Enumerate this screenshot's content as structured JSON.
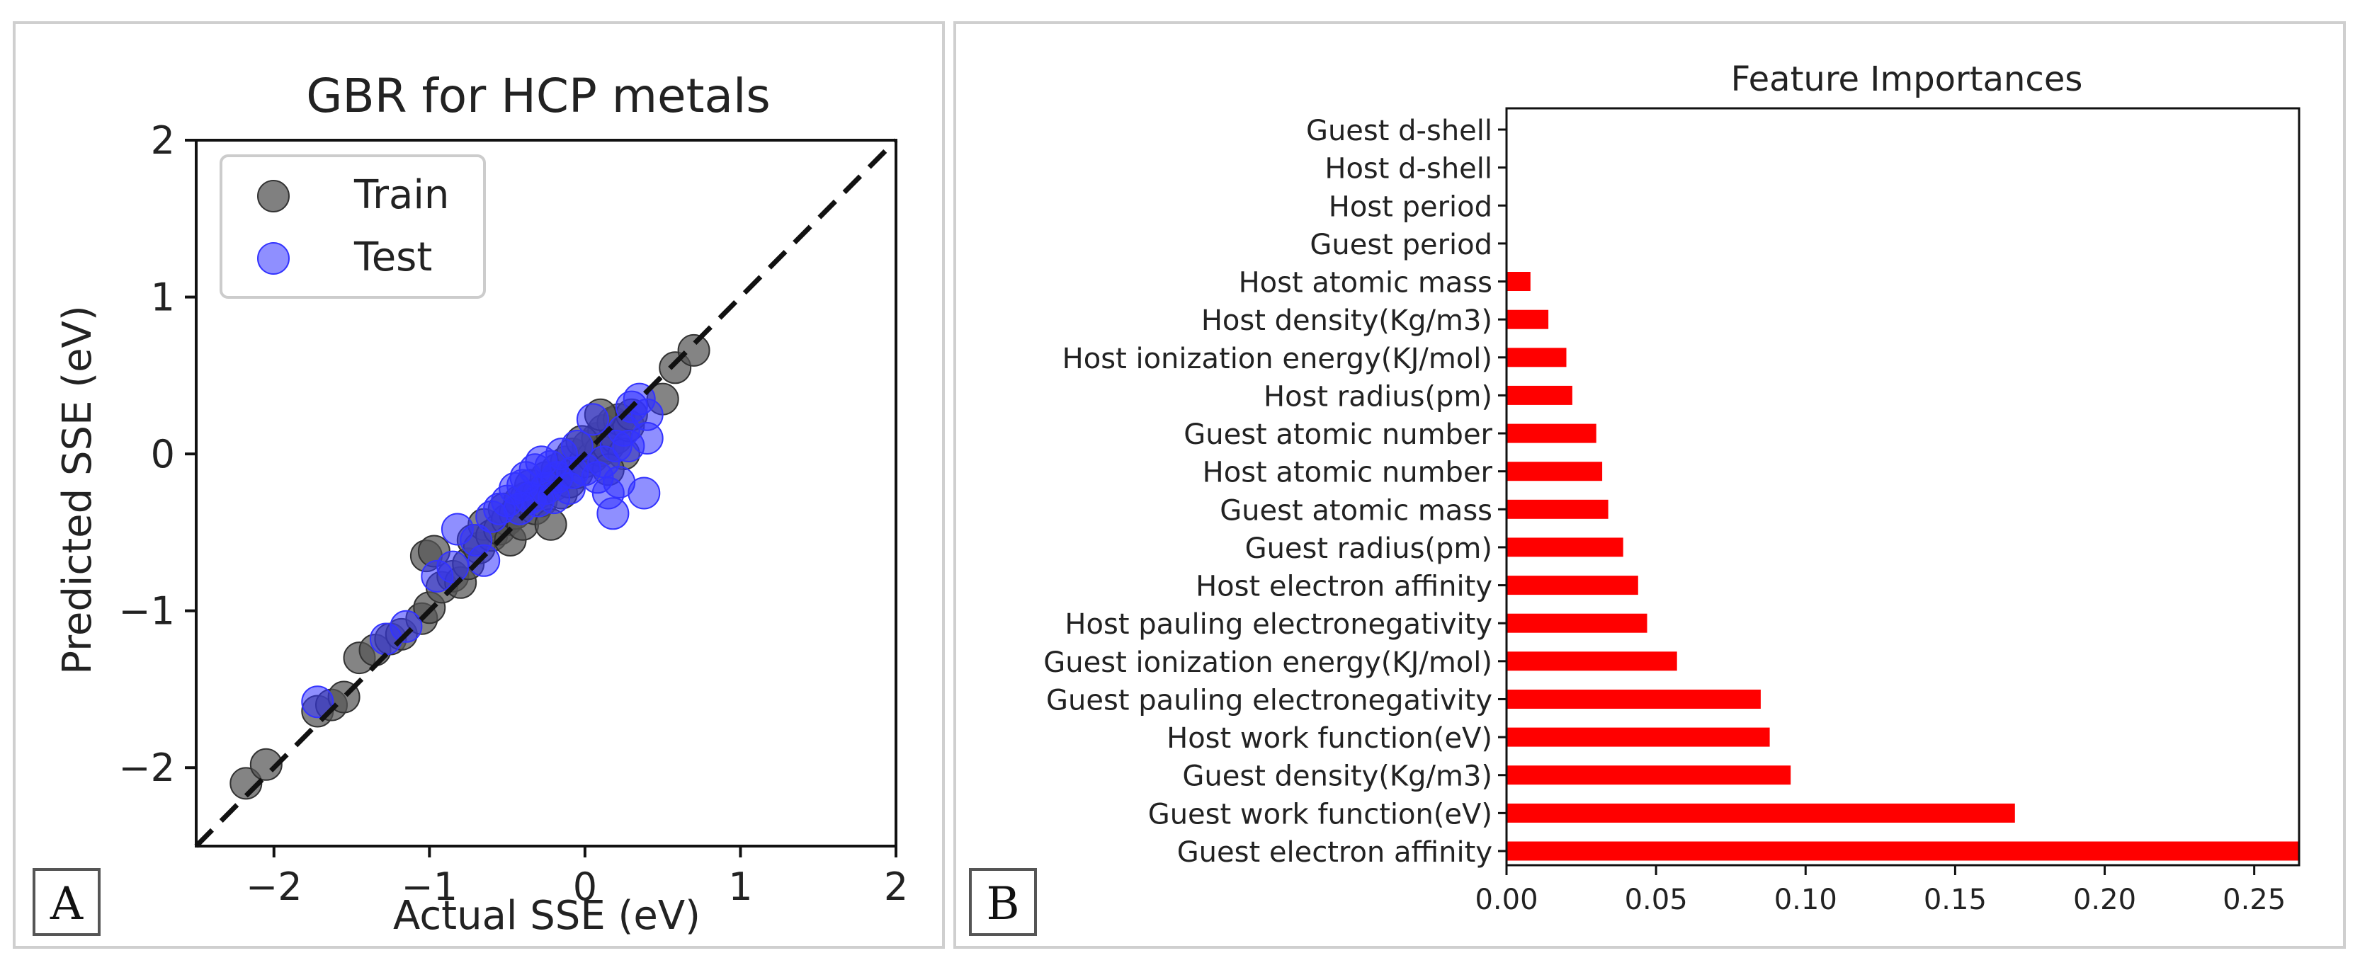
{
  "figure": {
    "panel_a_letter": "A",
    "panel_b_letter": "B"
  },
  "chart_data": [
    {
      "type": "scatter",
      "title": "GBR for HCP metals",
      "xlabel": "Actual SSE (eV)",
      "ylabel": "Predicted SSE (eV)",
      "xlim": [
        -2.5,
        2
      ],
      "ylim": [
        -2.5,
        2
      ],
      "xticks": [
        -2,
        -1,
        0,
        1,
        2
      ],
      "yticks": [
        -2,
        -1,
        0,
        1,
        2
      ],
      "xtick_labels": [
        "−2",
        "−1",
        "0",
        "1",
        "2"
      ],
      "ytick_labels": [
        "−2",
        "−1",
        "0",
        "1",
        "2"
      ],
      "legend": {
        "position": "top-left",
        "entries": [
          "Train",
          "Test"
        ]
      },
      "reference_line": {
        "style": "dashed",
        "from": [
          -2.5,
          -2.5
        ],
        "to": [
          2,
          2
        ]
      },
      "series": [
        {
          "name": "Train",
          "color": "#555555",
          "points": [
            [
              -2.18,
              -2.1
            ],
            [
              -2.05,
              -1.98
            ],
            [
              -1.72,
              -1.64
            ],
            [
              -1.63,
              -1.6
            ],
            [
              -1.55,
              -1.55
            ],
            [
              -1.45,
              -1.3
            ],
            [
              -1.35,
              -1.25
            ],
            [
              -1.25,
              -1.18
            ],
            [
              -1.18,
              -1.15
            ],
            [
              -1.05,
              -1.05
            ],
            [
              -1.0,
              -0.98
            ],
            [
              -1.02,
              -0.65
            ],
            [
              -0.97,
              -0.62
            ],
            [
              -0.92,
              -0.85
            ],
            [
              -0.85,
              -0.78
            ],
            [
              -0.8,
              -0.82
            ],
            [
              -0.75,
              -0.7
            ],
            [
              -0.72,
              -0.55
            ],
            [
              -0.68,
              -0.6
            ],
            [
              -0.65,
              -0.45
            ],
            [
              -0.6,
              -0.52
            ],
            [
              -0.55,
              -0.48
            ],
            [
              -0.52,
              -0.35
            ],
            [
              -0.5,
              -0.42
            ],
            [
              -0.48,
              -0.55
            ],
            [
              -0.45,
              -0.38
            ],
            [
              -0.42,
              -0.3
            ],
            [
              -0.4,
              -0.45
            ],
            [
              -0.38,
              -0.28
            ],
            [
              -0.35,
              -0.2
            ],
            [
              -0.32,
              -0.35
            ],
            [
              -0.3,
              -0.25
            ],
            [
              -0.28,
              -0.3
            ],
            [
              -0.25,
              -0.15
            ],
            [
              -0.22,
              -0.45
            ],
            [
              -0.2,
              -0.2
            ],
            [
              -0.18,
              -0.1
            ],
            [
              -0.15,
              -0.25
            ],
            [
              -0.12,
              -0.05
            ],
            [
              -0.1,
              -0.18
            ],
            [
              -0.08,
              0.0
            ],
            [
              -0.05,
              -0.12
            ],
            [
              0.0,
              -0.05
            ],
            [
              0.02,
              0.05
            ],
            [
              0.05,
              -0.02
            ],
            [
              0.08,
              0.1
            ],
            [
              0.1,
              0.02
            ],
            [
              0.12,
              0.15
            ],
            [
              0.15,
              0.05
            ],
            [
              0.18,
              0.2
            ],
            [
              0.2,
              0.1
            ],
            [
              0.22,
              0.22
            ],
            [
              0.25,
              0.0
            ],
            [
              0.28,
              0.18
            ],
            [
              0.3,
              0.25
            ],
            [
              0.1,
              0.25
            ],
            [
              0.15,
              -0.1
            ],
            [
              -0.02,
              0.08
            ],
            [
              0.5,
              0.35
            ],
            [
              0.58,
              0.55
            ],
            [
              0.7,
              0.66
            ]
          ]
        },
        {
          "name": "Test",
          "color": "#3333ff",
          "points": [
            [
              -1.72,
              -1.58
            ],
            [
              -1.28,
              -1.18
            ],
            [
              -1.15,
              -1.1
            ],
            [
              -0.95,
              -0.78
            ],
            [
              -0.85,
              -0.72
            ],
            [
              -0.82,
              -0.48
            ],
            [
              -0.7,
              -0.55
            ],
            [
              -0.65,
              -0.68
            ],
            [
              -0.6,
              -0.4
            ],
            [
              -0.55,
              -0.35
            ],
            [
              -0.5,
              -0.3
            ],
            [
              -0.45,
              -0.22
            ],
            [
              -0.42,
              -0.35
            ],
            [
              -0.4,
              -0.2
            ],
            [
              -0.38,
              -0.15
            ],
            [
              -0.35,
              -0.28
            ],
            [
              -0.32,
              -0.1
            ],
            [
              -0.3,
              -0.3
            ],
            [
              -0.28,
              -0.05
            ],
            [
              -0.25,
              -0.22
            ],
            [
              -0.22,
              -0.08
            ],
            [
              -0.2,
              -0.28
            ],
            [
              -0.18,
              -0.15
            ],
            [
              -0.15,
              0.0
            ],
            [
              -0.1,
              -0.22
            ],
            [
              -0.08,
              -0.12
            ],
            [
              -0.05,
              0.05
            ],
            [
              0.0,
              -0.1
            ],
            [
              0.05,
              0.22
            ],
            [
              0.08,
              -0.15
            ],
            [
              0.12,
              -0.05
            ],
            [
              0.15,
              -0.25
            ],
            [
              0.18,
              -0.38
            ],
            [
              0.2,
              0.05
            ],
            [
              0.22,
              -0.18
            ],
            [
              0.25,
              0.15
            ],
            [
              0.28,
              0.05
            ],
            [
              0.3,
              0.3
            ],
            [
              0.35,
              0.35
            ],
            [
              0.38,
              -0.25
            ],
            [
              0.4,
              0.1
            ],
            [
              0.4,
              0.25
            ]
          ]
        }
      ]
    },
    {
      "type": "bar",
      "orientation": "horizontal",
      "title": "Feature Importances",
      "xlim": [
        0,
        0.265
      ],
      "xticks": [
        0.0,
        0.05,
        0.1,
        0.15,
        0.2,
        0.25
      ],
      "xtick_labels": [
        "0.00",
        "0.05",
        "0.10",
        "0.15",
        "0.20",
        "0.25"
      ],
      "bar_color": "#ff0000",
      "categories": [
        "Guest d-shell",
        "Host d-shell",
        "Host period",
        "Guest period",
        "Host atomic mass",
        "Host density(Kg/m3)",
        "Host ionization energy(KJ/mol)",
        "Host radius(pm)",
        "Guest atomic number",
        "Host atomic number",
        "Guest atomic mass",
        "Guest radius(pm)",
        "Host electron affinity",
        "Host pauling electronegativity",
        "Guest ionization energy(KJ/mol)",
        "Guest pauling electronegativity",
        "Host work function(eV)",
        "Guest density(Kg/m3)",
        "Guest work function(eV)",
        "Guest electron affinity"
      ],
      "values": [
        0.0,
        0.0,
        0.0,
        0.0,
        0.008,
        0.014,
        0.02,
        0.022,
        0.03,
        0.032,
        0.034,
        0.039,
        0.044,
        0.047,
        0.057,
        0.085,
        0.088,
        0.095,
        0.17,
        0.265
      ]
    }
  ]
}
